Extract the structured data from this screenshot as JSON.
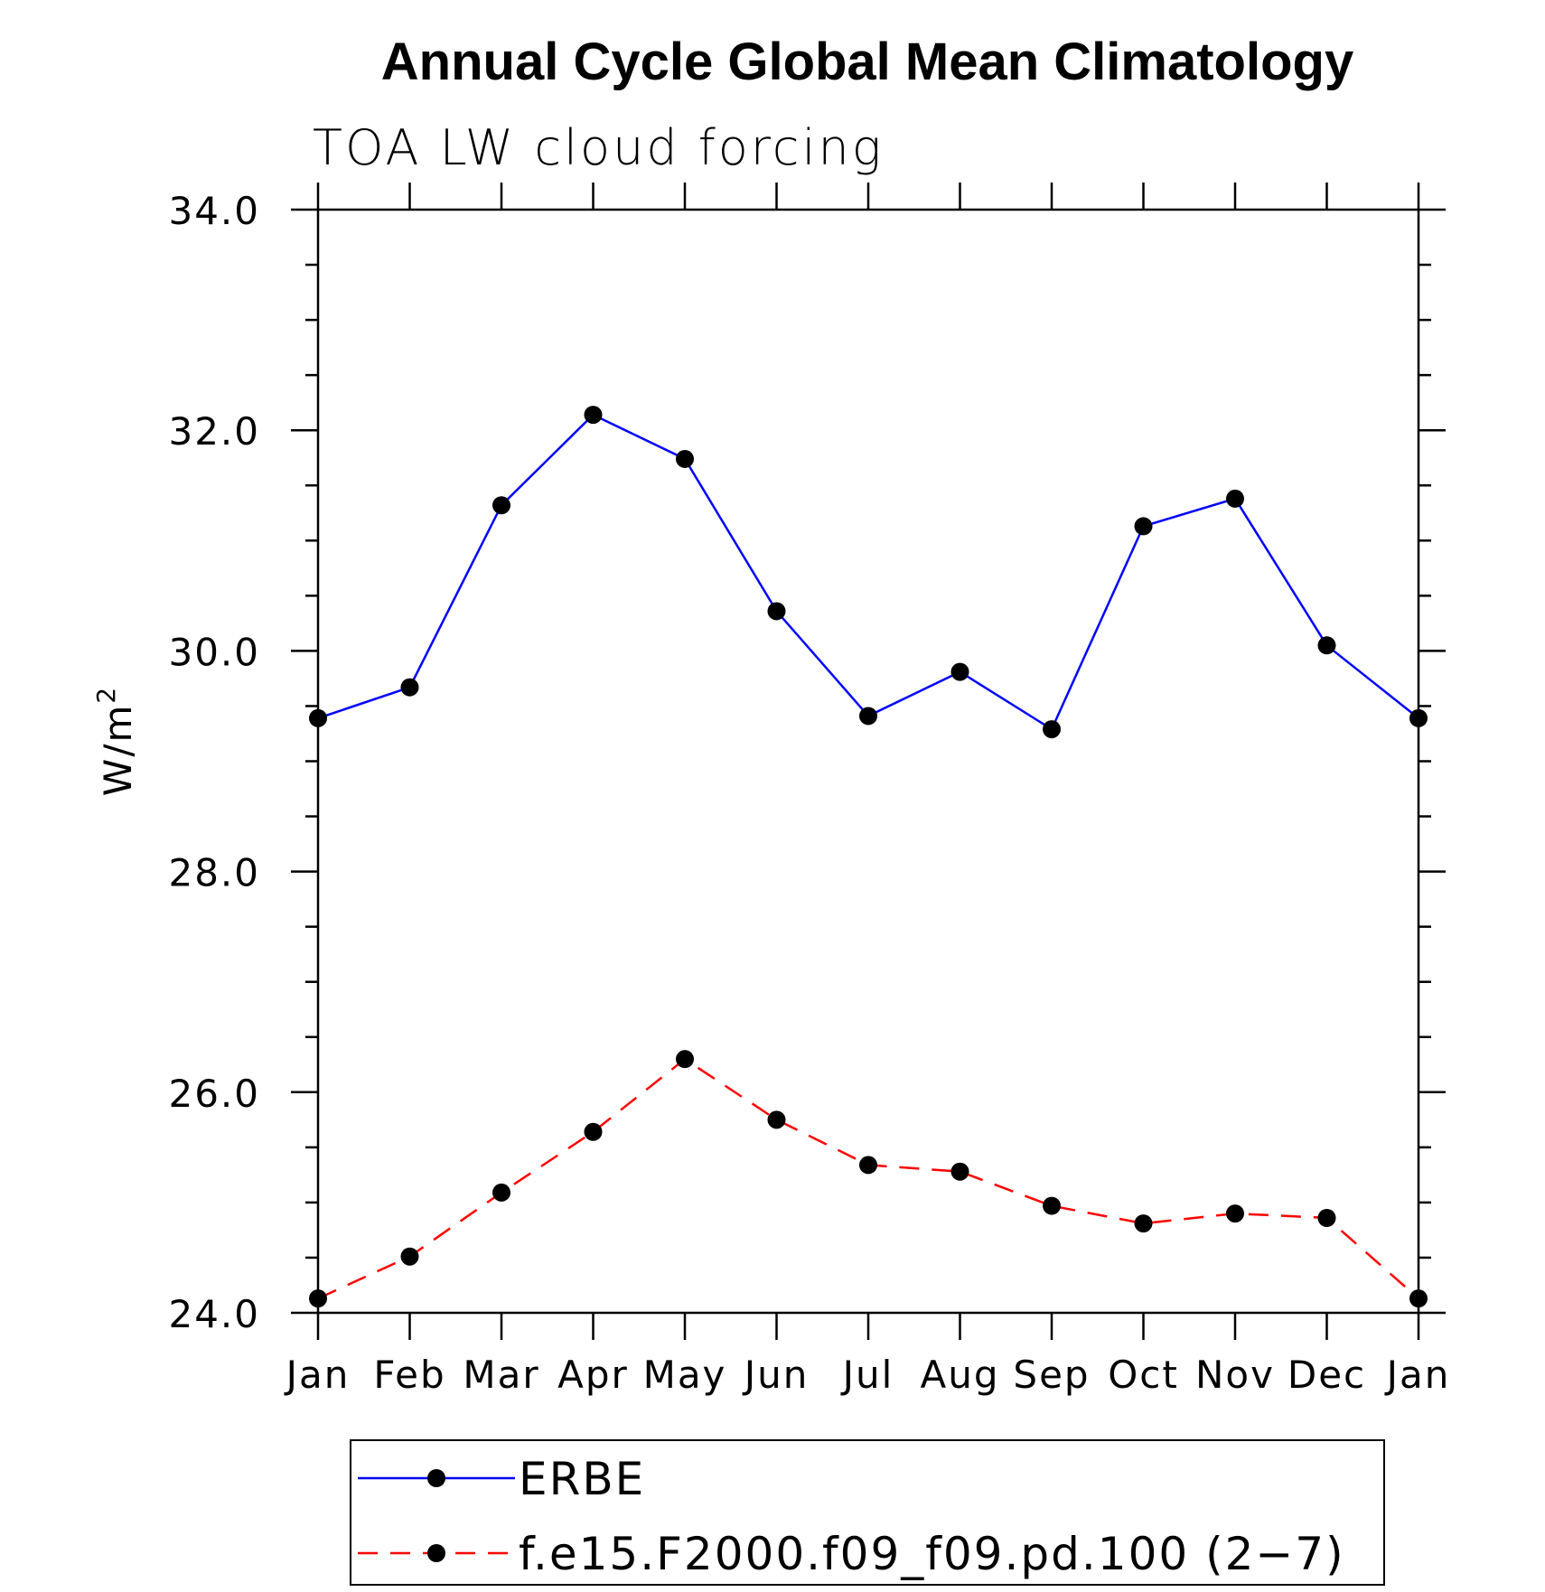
{
  "chart_data": {
    "type": "line",
    "title": "Annual Cycle Global Mean Climatology",
    "subtitle": "TOA LW cloud forcing",
    "ylabel": "W/m",
    "ylabel_superscript": "2",
    "xlabel": "",
    "categories": [
      "Jan",
      "Feb",
      "Mar",
      "Apr",
      "May",
      "Jun",
      "Jul",
      "Aug",
      "Sep",
      "Oct",
      "Nov",
      "Dec",
      "Jan"
    ],
    "ylim": [
      24.0,
      34.0
    ],
    "yticks": [
      "24.0",
      "26.0",
      "28.0",
      "30.0",
      "32.0",
      "34.0"
    ],
    "grid": false,
    "legend_position": "bottom",
    "series": [
      {
        "name": "ERBE",
        "color": "#0000ff",
        "dash": "solid",
        "marker": "filled-circle",
        "values": [
          29.39,
          29.67,
          31.32,
          32.14,
          31.74,
          30.36,
          29.41,
          29.81,
          29.29,
          31.13,
          31.38,
          30.05,
          29.39
        ]
      },
      {
        "name": "f.e15.F2000.f09_f09.pd.100 (2−7)",
        "color": "#ff0000",
        "dash": "dashed",
        "marker": "filled-circle",
        "values": [
          24.13,
          24.51,
          25.09,
          25.64,
          26.3,
          25.75,
          25.34,
          25.28,
          24.97,
          24.81,
          24.9,
          24.86,
          24.13
        ]
      }
    ]
  }
}
